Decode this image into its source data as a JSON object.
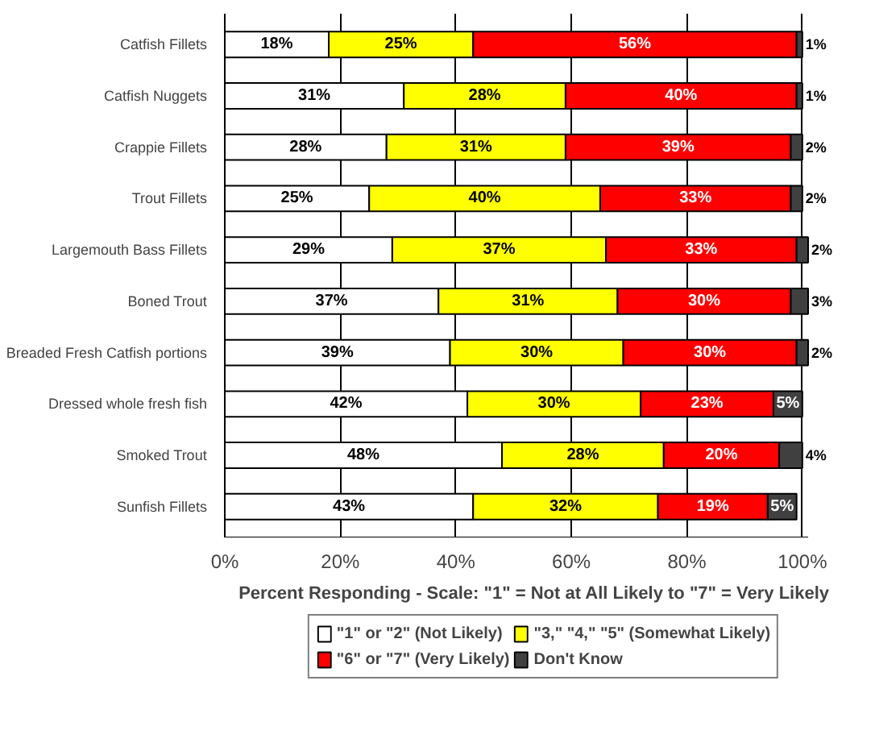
{
  "chart_data": {
    "type": "bar",
    "orientation": "horizontal",
    "stacked": true,
    "xlabel": "Percent Responding - Scale: \"1\" = Not at All Likely to \"7\" = Very Likely",
    "categories": [
      "Catfish Fillets",
      "Catfish Nuggets",
      "Crappie Fillets",
      "Trout Fillets",
      "Largemouth Bass Fillets",
      "Boned Trout",
      "Breaded Fresh Catfish portions",
      "Dressed whole fresh fish",
      "Smoked Trout",
      "Sunfish Fillets"
    ],
    "series": [
      {
        "name": "\"1\" or \"2\" (Not Likely)",
        "color": "#ffffff",
        "values": [
          18,
          31,
          28,
          25,
          29,
          37,
          39,
          42,
          48,
          43
        ],
        "value_labels": [
          "18%",
          "31%",
          "28%",
          "25%",
          "29%",
          "37%",
          "39%",
          "42%",
          "48%",
          "43%"
        ]
      },
      {
        "name": "\"3,\" \"4,\" \"5\" (Somewhat Likely)",
        "color": "#ffff00",
        "values": [
          25,
          28,
          31,
          40,
          37,
          31,
          30,
          30,
          28,
          32
        ],
        "value_labels": [
          "25%",
          "28%",
          "31%",
          "40%",
          "37%",
          "31%",
          "30%",
          "30%",
          "28%",
          "32%"
        ]
      },
      {
        "name": "\"6\" or \"7\" (Very Likely)",
        "color": "#ff0000",
        "values": [
          56,
          40,
          39,
          33,
          33,
          30,
          30,
          23,
          20,
          19
        ],
        "value_labels": [
          "56%",
          "40%",
          "39%",
          "33%",
          "33%",
          "30%",
          "30%",
          "23%",
          "20%",
          "19%"
        ]
      },
      {
        "name": "Don't Know",
        "color": "#404040",
        "values": [
          1,
          1,
          2,
          2,
          2,
          3,
          2,
          5,
          4,
          5
        ],
        "value_labels": [
          "1%",
          "1%",
          "2%",
          "2%",
          "2%",
          "3%",
          "2%",
          "5%",
          "4%",
          "5%"
        ]
      }
    ],
    "xlim": [
      0,
      101
    ],
    "xticks": [
      {
        "value": 0,
        "label": "0%"
      },
      {
        "value": 20,
        "label": "20%"
      },
      {
        "value": 40,
        "label": "40%"
      },
      {
        "value": 60,
        "label": "60%"
      },
      {
        "value": 80,
        "label": "80%"
      },
      {
        "value": 100,
        "label": "100%"
      }
    ],
    "grid": "x",
    "legend": "bottom"
  }
}
